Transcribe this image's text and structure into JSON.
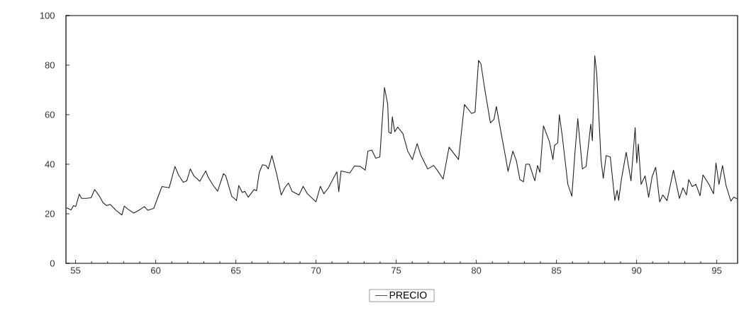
{
  "chart_data": {
    "type": "line",
    "xlim": [
      54.4,
      96.3
    ],
    "ylim": [
      0,
      100
    ],
    "xticks": [
      55,
      60,
      65,
      70,
      75,
      80,
      85,
      90,
      95
    ],
    "yticks": [
      0,
      20,
      40,
      60,
      80,
      100
    ],
    "legend": "bottom",
    "grid": false,
    "marker": "none",
    "line_style": "solid",
    "series": [
      {
        "name": "PRECIO",
        "color": "#222222",
        "x": [
          54.43,
          54.72,
          54.87,
          55.01,
          55.23,
          55.38,
          55.68,
          55.97,
          56.19,
          56.49,
          56.71,
          56.93,
          57.15,
          57.37,
          57.52,
          57.89,
          58.04,
          58.26,
          58.63,
          58.92,
          59.29,
          59.51,
          59.88,
          60.17,
          60.39,
          60.84,
          61.2,
          61.42,
          61.72,
          61.94,
          62.16,
          62.38,
          62.75,
          63.12,
          63.27,
          63.56,
          63.86,
          64.23,
          64.37,
          64.74,
          65.04,
          65.18,
          65.4,
          65.55,
          65.77,
          66.14,
          66.29,
          66.46,
          66.66,
          66.88,
          67.02,
          67.25,
          67.54,
          67.83,
          68.05,
          68.28,
          68.5,
          68.94,
          69.2,
          69.46,
          69.82,
          70.0,
          70.27,
          70.49,
          70.78,
          71.08,
          71.3,
          71.42,
          71.56,
          72.11,
          72.4,
          72.77,
          73.07,
          73.24,
          73.48,
          73.73,
          73.98,
          74.27,
          74.47,
          74.54,
          74.69,
          74.76,
          74.91,
          75.1,
          75.42,
          75.72,
          76.01,
          76.31,
          76.53,
          76.97,
          77.34,
          77.56,
          77.93,
          78.3,
          78.89,
          79.04,
          79.26,
          79.7,
          79.92,
          80.14,
          80.29,
          80.51,
          80.88,
          81.1,
          81.25,
          81.54,
          81.84,
          81.98,
          82.28,
          82.5,
          82.72,
          82.94,
          83.09,
          83.31,
          83.65,
          83.82,
          83.97,
          84.19,
          84.56,
          84.78,
          84.88,
          85.08,
          85.18,
          85.37,
          85.71,
          85.96,
          86.15,
          86.33,
          86.62,
          86.85,
          87.14,
          87.24,
          87.39,
          87.51,
          87.78,
          87.92,
          88.1,
          88.36,
          88.64,
          88.79,
          88.88,
          89.05,
          89.35,
          89.65,
          89.91,
          90.01,
          90.11,
          90.28,
          90.53,
          90.75,
          90.97,
          91.19,
          91.44,
          91.63,
          91.9,
          92.3,
          92.67,
          92.89,
          93.11,
          93.25,
          93.47,
          93.7,
          93.96,
          94.14,
          94.51,
          94.8,
          94.95,
          95.14,
          95.36,
          95.58,
          95.88,
          96.06,
          96.28
        ],
        "values": [
          22.4,
          21.6,
          23.3,
          22.9,
          27.9,
          26.2,
          26.2,
          26.5,
          29.8,
          27.1,
          24.5,
          23.3,
          23.8,
          22.4,
          21.4,
          19.5,
          23.1,
          21.9,
          20.3,
          21.3,
          22.9,
          21.4,
          22.2,
          27.3,
          31.0,
          30.5,
          39.1,
          35.7,
          32.7,
          33.3,
          38.1,
          35.3,
          33.1,
          37.3,
          34.8,
          31.7,
          29.1,
          36.2,
          35.3,
          27.1,
          25.3,
          31.4,
          28.6,
          29.1,
          26.7,
          29.8,
          29.3,
          36.7,
          39.8,
          39.5,
          38.1,
          43.5,
          36.2,
          27.6,
          30.5,
          32.4,
          29.1,
          27.6,
          31.1,
          28.1,
          25.9,
          24.8,
          31.1,
          28.1,
          30.5,
          34.3,
          36.9,
          28.9,
          37.3,
          36.5,
          39.3,
          39.1,
          37.6,
          45.3,
          45.7,
          42.4,
          42.9,
          71.0,
          64.3,
          52.9,
          52.4,
          59.1,
          53.1,
          55.0,
          52.4,
          45.3,
          41.9,
          48.3,
          43.8,
          38.1,
          39.5,
          37.6,
          34.0,
          46.9,
          41.9,
          51.0,
          64.1,
          60.5,
          61.0,
          81.9,
          80.5,
          71.0,
          56.7,
          58.1,
          63.3,
          52.9,
          42.4,
          37.1,
          45.3,
          41.4,
          33.8,
          32.9,
          40.0,
          40.0,
          33.3,
          39.5,
          36.7,
          55.5,
          49.1,
          41.9,
          47.6,
          48.6,
          60.0,
          51.0,
          31.9,
          27.1,
          44.3,
          58.4,
          38.1,
          39.1,
          56.2,
          49.5,
          83.8,
          76.7,
          41.9,
          34.3,
          43.5,
          42.9,
          25.4,
          29.5,
          25.4,
          33.8,
          44.8,
          33.3,
          54.8,
          40.5,
          48.1,
          31.9,
          35.3,
          26.7,
          35.0,
          38.8,
          24.8,
          27.6,
          25.3,
          37.6,
          26.2,
          30.5,
          27.6,
          33.8,
          31.0,
          31.9,
          27.3,
          35.7,
          31.9,
          28.1,
          40.5,
          31.9,
          39.5,
          31.4,
          25.1,
          26.7,
          26.0
        ]
      }
    ]
  }
}
